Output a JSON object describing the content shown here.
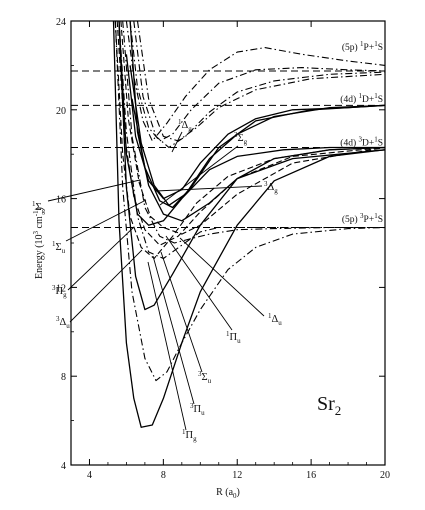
{
  "chart_data": {
    "type": "line",
    "xlabel": "R (a",
    "xlabel_sub": "0",
    "xlabel_end": ")",
    "ylabel": "Energy (10",
    "ylabel_sup": "3",
    "ylabel_mid": " cm",
    "ylabel_sup2": "-1",
    "ylabel_end": ")",
    "xlim": [
      3,
      20
    ],
    "ylim": [
      4,
      24
    ],
    "x_ticks": [
      4,
      8,
      12,
      16,
      20
    ],
    "y_ticks": [
      4,
      8,
      12,
      16,
      20,
      24
    ],
    "molecule": "Sr",
    "molecule_sub": "2",
    "asymptote_labels": [
      {
        "prefix": "(5p) ",
        "sup1": "1",
        "term1": "P+",
        "sup2": "1",
        "term2": "S",
        "y": 22.7
      },
      {
        "prefix": "(4d) ",
        "sup1": "1",
        "term1": "D+",
        "sup2": "1",
        "term2": "S",
        "y": 20.35
      },
      {
        "prefix": "(4d) ",
        "sup1": "3",
        "term1": "D+",
        "sup2": "1",
        "term2": "S",
        "y": 18.4
      },
      {
        "prefix": "(5p) ",
        "sup1": "3",
        "term1": "P+",
        "sup2": "1",
        "term2": "S",
        "y": 14.95
      }
    ],
    "asymptote_levels": [
      21.75,
      20.2,
      18.3,
      14.7
    ],
    "state_labels": [
      {
        "sup": "1",
        "main": "Δ",
        "sub": "g"
      },
      {
        "sup": "3",
        "main": "Σ",
        "sub": "g"
      },
      {
        "sup": "1",
        "main": "Σ",
        "sub": "g"
      },
      {
        "sup": "3",
        "main": "Δ",
        "sub": "g"
      },
      {
        "sup": "1",
        "main": "Σ",
        "sub": "u"
      },
      {
        "sup": "3",
        "main": "Π",
        "sub": "g"
      },
      {
        "sup": "3",
        "main": "Δ",
        "sub": "u"
      },
      {
        "sup": "1",
        "main": "Δ",
        "sub": "u"
      },
      {
        "sup": "1",
        "main": "Π",
        "sub": "u"
      },
      {
        "sup": "3",
        "main": "Σ",
        "sub": "u"
      },
      {
        "sup": "3",
        "main": "Π",
        "sub": "u"
      },
      {
        "sup": "1",
        "main": "Π",
        "sub": "g"
      }
    ],
    "series": [
      {
        "style": "solid",
        "x": [
          5.3,
          5.6,
          6.0,
          6.4,
          6.8,
          7.4,
          8.0,
          9.0,
          10.0,
          12.0,
          14.0,
          17.0,
          20.0
        ],
        "y": [
          24.0,
          15.0,
          9.5,
          7.0,
          5.7,
          5.8,
          7.0,
          9.5,
          11.8,
          14.8,
          16.8,
          17.9,
          18.2
        ]
      },
      {
        "style": "solid",
        "x": [
          5.6,
          6.0,
          6.5,
          7.0,
          7.5,
          8.5,
          10.0,
          12.0,
          14.0,
          17.0,
          20.0
        ],
        "y": [
          24.0,
          16.5,
          12.5,
          11.0,
          11.2,
          12.6,
          14.8,
          16.9,
          17.8,
          18.2,
          18.3
        ]
      },
      {
        "style": "solid",
        "x": [
          5.6,
          6.0,
          6.6,
          7.2,
          8.0,
          9.0,
          10.5,
          12.0,
          14.5,
          17.0,
          20.0
        ],
        "y": [
          24.0,
          18.0,
          15.3,
          14.8,
          15.0,
          16.0,
          17.3,
          17.9,
          18.2,
          18.3,
          18.3
        ]
      },
      {
        "style": "solid",
        "x": [
          6.0,
          6.5,
          7.2,
          8.0,
          9.0,
          10.0,
          11.5,
          13.0,
          15.0,
          18.0,
          20.0
        ],
        "y": [
          22.5,
          18.8,
          16.8,
          16.0,
          16.4,
          17.6,
          18.9,
          19.6,
          20.0,
          20.1,
          20.2
        ]
      },
      {
        "style": "solid",
        "x": [
          6.2,
          6.8,
          7.5,
          8.3,
          9.2,
          10.5,
          12.0,
          14.0,
          17.0,
          20.0
        ],
        "y": [
          22.0,
          18.5,
          16.6,
          15.7,
          16.2,
          17.8,
          18.9,
          19.7,
          20.1,
          20.2
        ]
      },
      {
        "style": "solid",
        "x": [
          6.3,
          7.0,
          7.8,
          8.5,
          9.5,
          11.0,
          13.0,
          16.0,
          20.0
        ],
        "y": [
          20.5,
          17.4,
          15.9,
          15.6,
          16.5,
          18.3,
          19.5,
          20.0,
          20.2
        ]
      },
      {
        "style": "solid",
        "x": [
          6.2,
          6.6,
          7.2,
          8.0,
          9.0,
          10.5,
          12.0,
          15.0,
          20.0
        ],
        "y": [
          24.0,
          19.0,
          16.6,
          15.3,
          15.0,
          15.8,
          16.9,
          17.8,
          18.2
        ]
      },
      {
        "style": "dashed",
        "x": [
          5.4,
          5.8,
          6.2,
          6.8,
          7.5,
          8.5,
          9.8,
          11.5,
          14.0,
          17.0,
          20.0
        ],
        "y": [
          24.0,
          18.0,
          15.2,
          13.8,
          13.3,
          14.3,
          15.8,
          17.0,
          17.8,
          18.2,
          18.3
        ]
      },
      {
        "style": "dashed",
        "x": [
          5.5,
          5.9,
          6.4,
          7.0,
          7.8,
          8.8,
          10.0,
          12.0,
          15.0,
          20.0
        ],
        "y": [
          24.0,
          18.8,
          16.1,
          14.6,
          13.9,
          14.3,
          15.4,
          16.9,
          17.9,
          18.3
        ]
      },
      {
        "style": "dashed",
        "x": [
          5.7,
          6.1,
          6.7,
          7.3,
          8.0,
          9.0,
          10.0,
          12.0,
          15.0,
          20.0
        ],
        "y": [
          24.0,
          19.6,
          16.7,
          15.2,
          14.7,
          14.4,
          14.8,
          16.2,
          17.6,
          18.3
        ]
      },
      {
        "style": "dashdot",
        "x": [
          5.4,
          5.8,
          6.3,
          7.0,
          7.6,
          8.2,
          9.0,
          10.0,
          11.5,
          13.0,
          15.0,
          18.0,
          20.0
        ],
        "y": [
          24.0,
          16.5,
          11.8,
          8.8,
          7.8,
          8.2,
          9.5,
          11.0,
          12.8,
          13.8,
          14.4,
          14.65,
          14.7
        ]
      },
      {
        "style": "dashdot",
        "x": [
          5.6,
          6.0,
          6.6,
          7.2,
          8.0,
          9.0,
          10.0,
          11.0,
          12.5,
          14.0,
          16.0,
          20.0
        ],
        "y": [
          24.0,
          19.0,
          15.2,
          13.6,
          13.3,
          13.9,
          14.5,
          14.7,
          14.7,
          14.7,
          14.7,
          14.7
        ]
      },
      {
        "style": "dashdot",
        "x": [
          5.8,
          6.3,
          7.0,
          7.8,
          8.6,
          9.5,
          10.5,
          12.0,
          14.0,
          17.0,
          20.0
        ],
        "y": [
          24.0,
          18.8,
          15.6,
          14.3,
          14.0,
          14.2,
          14.4,
          14.6,
          14.65,
          14.7,
          14.7
        ]
      },
      {
        "style": "dashdot",
        "x": [
          6.0,
          6.4,
          6.9,
          7.4,
          8.2,
          9.2,
          10.5,
          12.0,
          13.5,
          15.5,
          18.0,
          20.0
        ],
        "y": [
          24.0,
          21.5,
          19.5,
          18.6,
          19.4,
          20.6,
          21.8,
          22.6,
          22.8,
          22.5,
          22.2,
          22.0
        ]
      },
      {
        "style": "dashdot",
        "x": [
          6.2,
          6.6,
          7.2,
          7.8,
          8.5,
          9.5,
          11.0,
          13.0,
          15.5,
          18.0,
          20.0
        ],
        "y": [
          24.0,
          21.0,
          19.2,
          18.6,
          18.9,
          20.0,
          21.2,
          21.8,
          21.9,
          21.8,
          21.75
        ]
      },
      {
        "style": "dashdot",
        "x": [
          6.4,
          6.9,
          7.6,
          8.3,
          9.2,
          10.5,
          12.0,
          14.0,
          17.0,
          20.0
        ],
        "y": [
          24.0,
          20.6,
          18.8,
          18.3,
          18.8,
          19.9,
          20.8,
          21.3,
          21.6,
          21.7
        ]
      },
      {
        "style": "dashdot",
        "x": [
          6.6,
          7.2,
          8.0,
          8.8,
          9.8,
          11.0,
          13.0,
          16.0,
          20.0
        ],
        "y": [
          24.0,
          20.5,
          18.8,
          18.6,
          19.2,
          20.1,
          20.9,
          21.4,
          21.6
        ]
      }
    ]
  }
}
